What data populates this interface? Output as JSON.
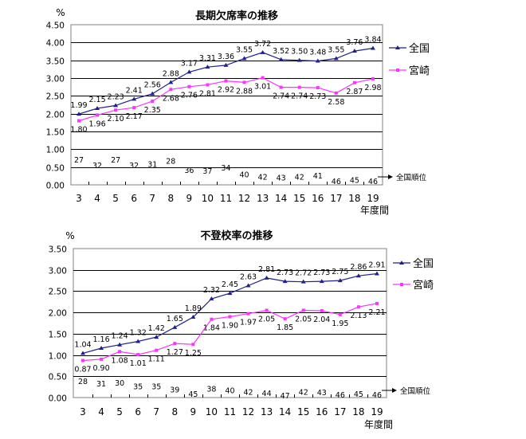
{
  "chart_data": [
    {
      "type": "line",
      "title": "長期欠席率の推移",
      "ylabel": "%",
      "xlabel": "年度間",
      "ylim": [
        0,
        4.5
      ],
      "ytick_step": 0.5,
      "grid": true,
      "legend_position": "right",
      "categories": [
        "3",
        "4",
        "5",
        "6",
        "7",
        "8",
        "9",
        "10",
        "11",
        "12",
        "13",
        "14",
        "15",
        "16",
        "17",
        "18",
        "19"
      ],
      "series": [
        {
          "name": "全国",
          "color": "#1f1f8f",
          "marker": "triangle",
          "values": [
            1.99,
            2.15,
            2.23,
            2.41,
            2.56,
            2.88,
            3.17,
            3.31,
            3.36,
            3.55,
            3.72,
            3.52,
            3.5,
            3.48,
            3.55,
            3.76,
            3.84
          ]
        },
        {
          "name": "宮崎",
          "color": "#ff33ff",
          "marker": "square",
          "values": [
            1.8,
            1.96,
            2.1,
            2.17,
            2.35,
            2.68,
            2.76,
            2.81,
            2.92,
            2.88,
            3.01,
            2.74,
            2.74,
            2.73,
            2.58,
            2.87,
            2.98
          ]
        }
      ],
      "rank_label": "全国順位",
      "ranks": [
        27,
        32,
        27,
        32,
        31,
        28,
        36,
        37,
        34,
        40,
        42,
        43,
        42,
        41,
        46,
        45,
        46
      ]
    },
    {
      "type": "line",
      "title": "不登校率の推移",
      "ylabel": "%",
      "xlabel": "年度間",
      "ylim": [
        0,
        3.5
      ],
      "ytick_step": 0.5,
      "grid": true,
      "legend_position": "right",
      "categories": [
        "3",
        "4",
        "5",
        "6",
        "7",
        "8",
        "9",
        "10",
        "11",
        "12",
        "13",
        "14",
        "15",
        "16",
        "17",
        "18",
        "19"
      ],
      "series": [
        {
          "name": "全国",
          "color": "#1f1f8f",
          "marker": "triangle",
          "values": [
            1.04,
            1.16,
            1.24,
            1.32,
            1.42,
            1.65,
            1.89,
            2.32,
            2.45,
            2.63,
            2.81,
            2.73,
            2.72,
            2.73,
            2.75,
            2.86,
            2.91
          ]
        },
        {
          "name": "宮崎",
          "color": "#ff33ff",
          "marker": "square",
          "values": [
            0.87,
            0.9,
            1.08,
            1.01,
            1.11,
            1.27,
            1.25,
            1.84,
            1.9,
            1.97,
            2.05,
            1.85,
            2.05,
            2.04,
            1.95,
            2.13,
            2.21
          ]
        }
      ],
      "rank_label": "全国順位",
      "ranks": [
        28,
        31,
        30,
        35,
        35,
        39,
        45,
        38,
        40,
        42,
        44,
        47,
        42,
        43,
        46,
        45,
        46
      ]
    }
  ]
}
